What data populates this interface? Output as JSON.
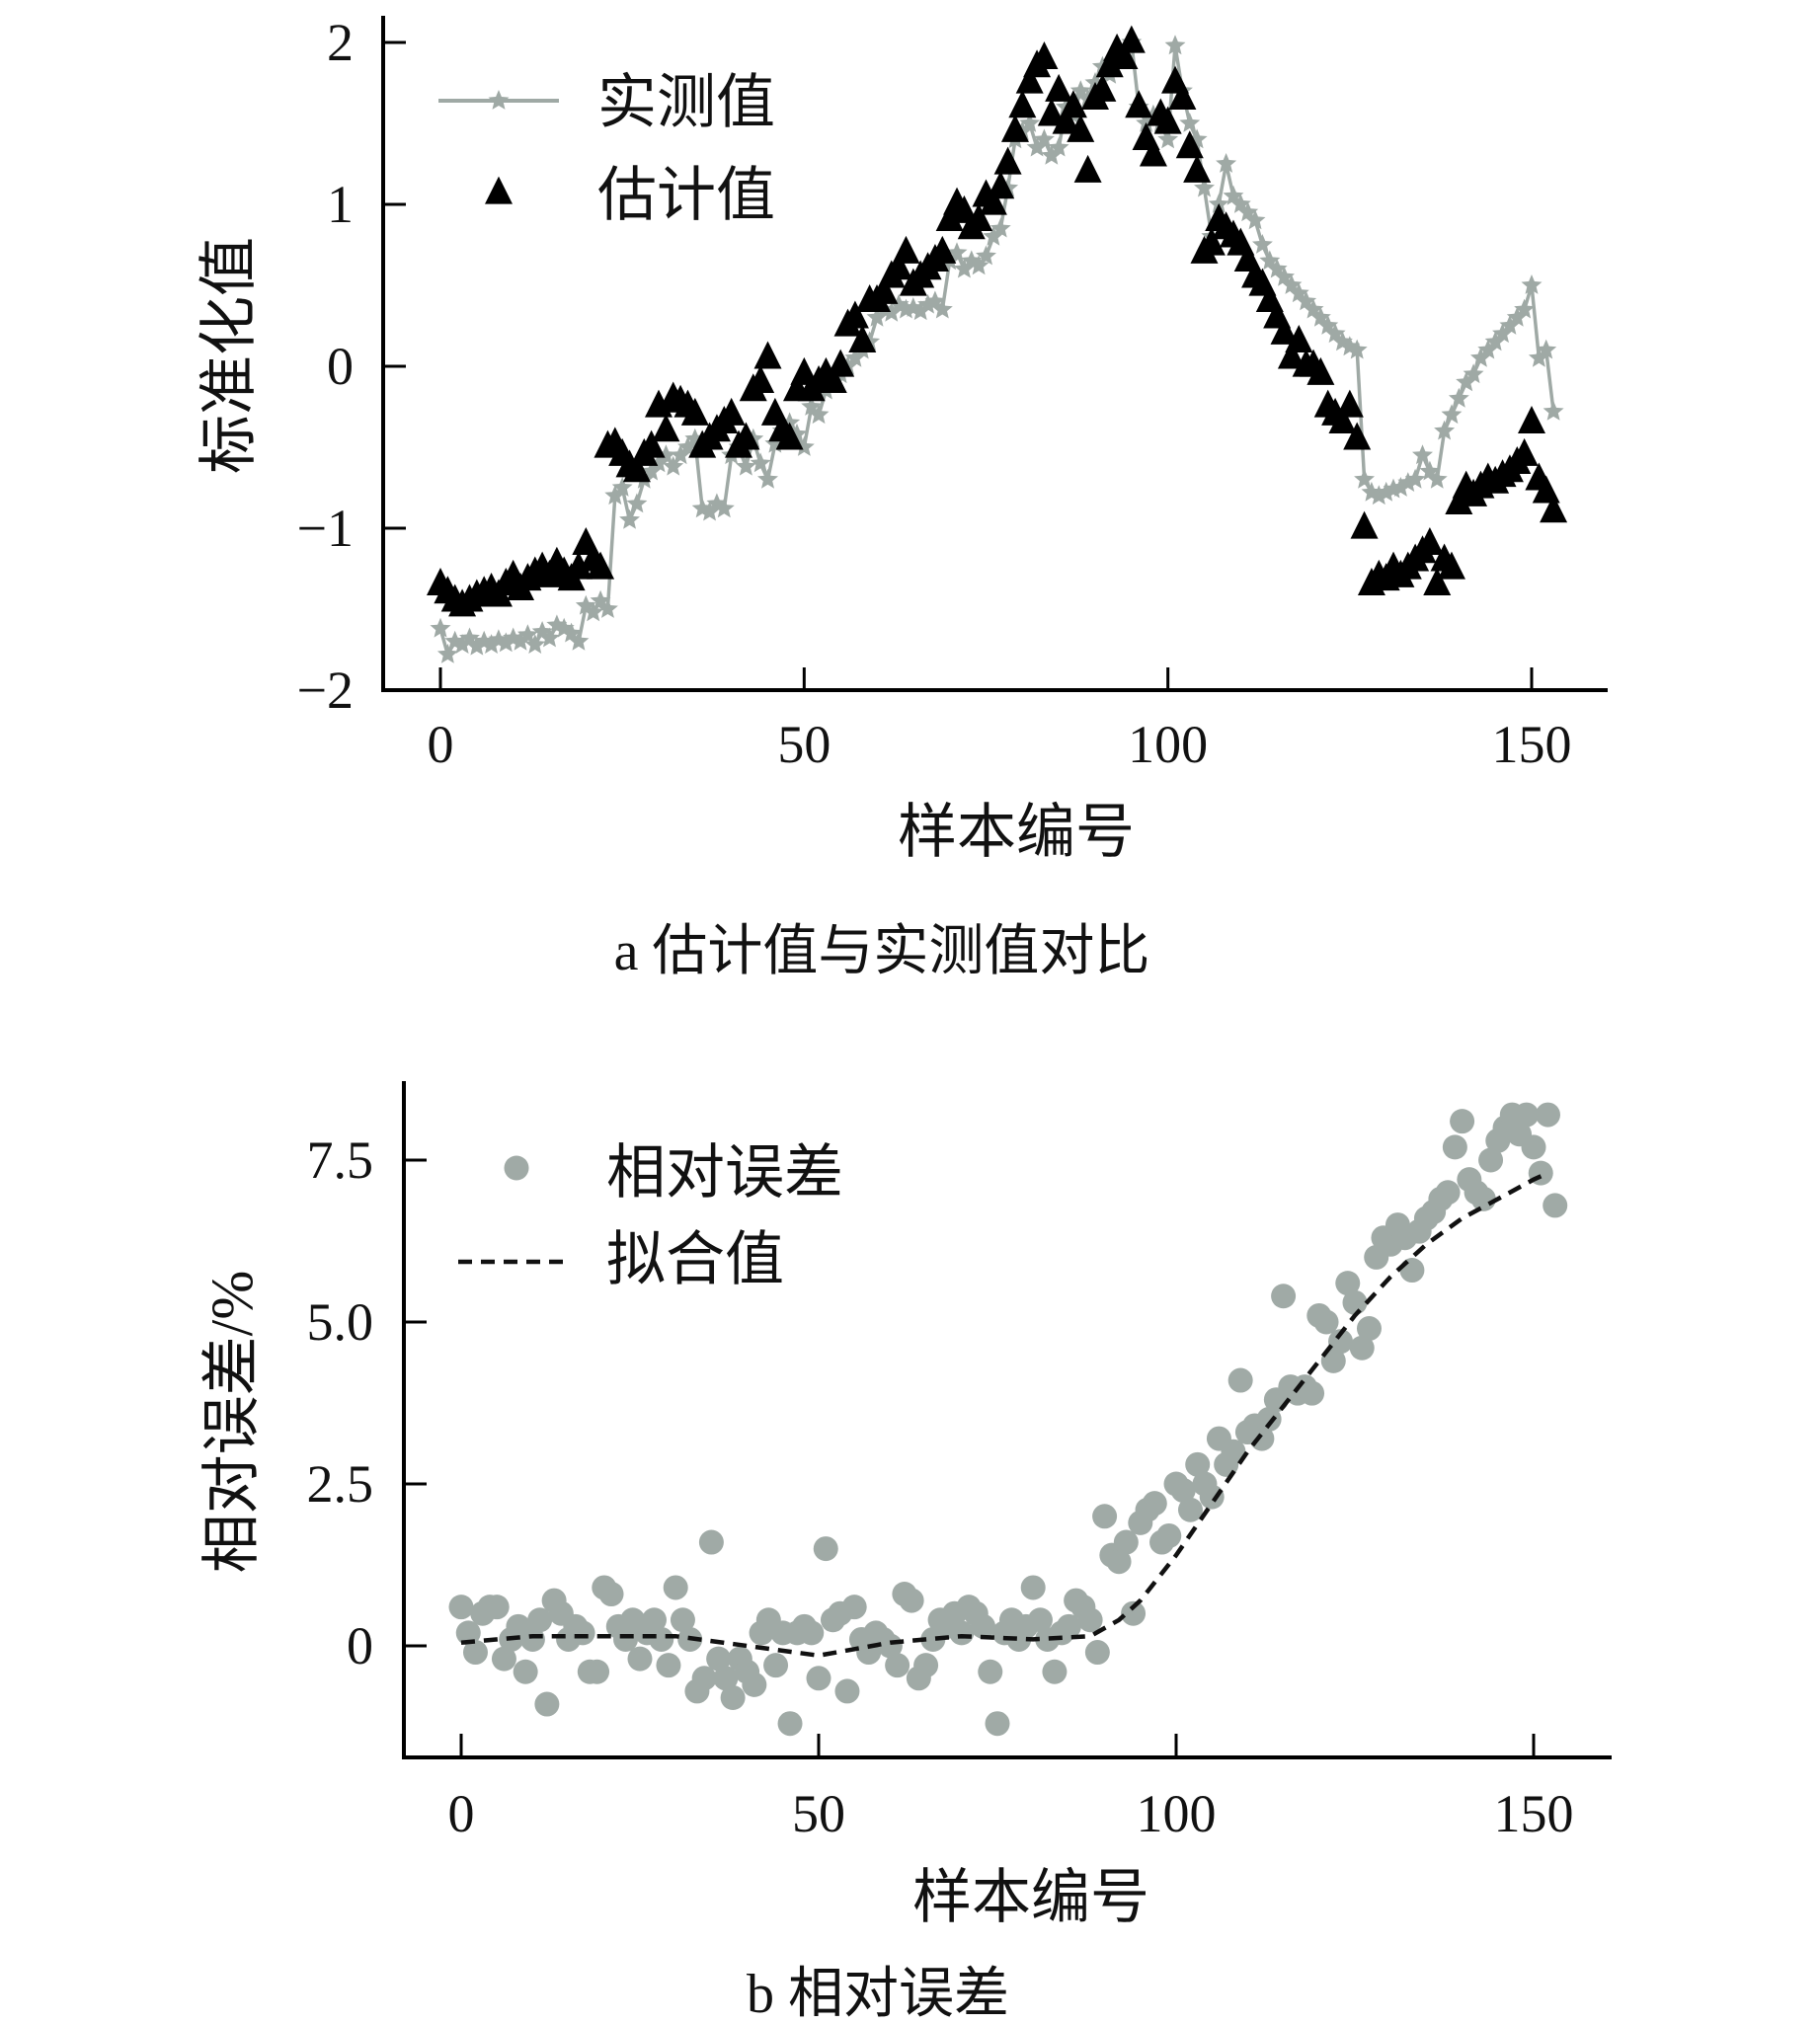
{
  "colors": {
    "measured": "#9fa9a5",
    "estimated": "#000000",
    "error": "#a0aaa6",
    "fit": "#111111",
    "axis": "#000000"
  },
  "chart_data": [
    {
      "type": "line",
      "caption": "a  估计值与实测值对比",
      "xlabel": "样本编号",
      "ylabel": "标准化值",
      "xlim": [
        -7,
        160
      ],
      "ylim": [
        -2,
        2.15
      ],
      "xticks": [
        0,
        50,
        100,
        150
      ],
      "xtick_labels": [
        "0",
        "50",
        "100",
        "150"
      ],
      "yticks": [
        2,
        1,
        0,
        -1,
        -2
      ],
      "ytick_labels": [
        "2",
        "1",
        "0",
        "−1",
        "−2"
      ],
      "legend": {
        "placement": "top-left",
        "entries": [
          "实测值",
          "估计值"
        ]
      },
      "series": [
        {
          "name": "实测值",
          "style": "gray line with star markers",
          "values": [
            -1.62,
            -1.78,
            -1.7,
            -1.72,
            -1.68,
            -1.73,
            -1.7,
            -1.72,
            -1.69,
            -1.71,
            -1.68,
            -1.7,
            -1.66,
            -1.72,
            -1.64,
            -1.68,
            -1.6,
            -1.62,
            -1.65,
            -1.7,
            -1.48,
            -1.52,
            -1.45,
            -1.5,
            -0.8,
            -0.75,
            -0.95,
            -0.85,
            -0.7,
            -0.65,
            -0.6,
            -0.55,
            -0.62,
            -0.55,
            -0.5,
            -0.45,
            -0.88,
            -0.9,
            -0.85,
            -0.88,
            -0.55,
            -0.5,
            -0.62,
            -0.45,
            -0.6,
            -0.7,
            -0.48,
            -0.4,
            -0.35,
            -0.42,
            -0.5,
            -0.25,
            -0.3,
            -0.15,
            -0.1,
            -0.05,
            0.0,
            0.05,
            0.1,
            0.15,
            0.3,
            0.35,
            0.33,
            0.38,
            0.35,
            0.36,
            0.34,
            0.38,
            0.4,
            0.35,
            0.65,
            0.7,
            0.6,
            0.65,
            0.62,
            0.68,
            0.8,
            0.85,
            1.1,
            1.4,
            1.45,
            1.5,
            1.35,
            1.4,
            1.3,
            1.35,
            1.6,
            1.55,
            1.7,
            1.65,
            1.75,
            1.85,
            1.8,
            1.9,
            1.95,
            2.0,
            1.6,
            1.5,
            1.55,
            1.5,
            1.4,
            1.98,
            1.7,
            1.5,
            1.4,
            1.1,
            0.8,
            1.0,
            1.25,
            1.05,
            1.0,
            0.95,
            0.9,
            0.75,
            0.65,
            0.6,
            0.55,
            0.5,
            0.45,
            0.4,
            0.35,
            0.3,
            0.25,
            0.2,
            0.15,
            0.12,
            0.1,
            -0.7,
            -0.78,
            -0.8,
            -0.78,
            -0.76,
            -0.75,
            -0.72,
            -0.7,
            -0.55,
            -0.65,
            -0.7,
            -0.4,
            -0.3,
            -0.2,
            -0.1,
            -0.05,
            0.05,
            0.1,
            0.15,
            0.2,
            0.25,
            0.3,
            0.35,
            0.5,
            0.05,
            0.1,
            -0.28
          ]
        },
        {
          "name": "估计值",
          "style": "black triangle markers",
          "values": [
            -1.35,
            -1.4,
            -1.45,
            -1.48,
            -1.45,
            -1.42,
            -1.4,
            -1.38,
            -1.42,
            -1.35,
            -1.3,
            -1.38,
            -1.32,
            -1.28,
            -1.25,
            -1.3,
            -1.22,
            -1.28,
            -1.32,
            -1.25,
            -1.1,
            -1.2,
            -1.25,
            -0.5,
            -0.48,
            -0.55,
            -0.62,
            -0.65,
            -0.55,
            -0.5,
            -0.25,
            -0.4,
            -0.2,
            -0.22,
            -0.25,
            -0.3,
            -0.5,
            -0.45,
            -0.4,
            -0.35,
            -0.3,
            -0.5,
            -0.45,
            -0.15,
            -0.1,
            0.05,
            -0.3,
            -0.4,
            -0.45,
            -0.15,
            -0.05,
            -0.15,
            -0.1,
            -0.05,
            -0.1,
            0.0,
            0.25,
            0.3,
            0.15,
            0.4,
            0.4,
            0.45,
            0.55,
            0.6,
            0.7,
            0.5,
            0.55,
            0.6,
            0.65,
            0.7,
            0.9,
            1.0,
            0.95,
            0.85,
            0.9,
            1.05,
            1.0,
            1.1,
            1.25,
            1.45,
            1.6,
            1.75,
            1.85,
            1.9,
            1.55,
            1.7,
            1.5,
            1.6,
            1.45,
            1.2,
            1.65,
            1.7,
            1.85,
            1.95,
            1.9,
            2.0,
            1.6,
            1.4,
            1.3,
            1.55,
            1.5,
            1.75,
            1.65,
            1.35,
            1.2,
            0.7,
            0.75,
            0.9,
            0.85,
            0.8,
            0.75,
            0.65,
            0.55,
            0.5,
            0.4,
            0.3,
            0.2,
            0.05,
            0.15,
            0.0,
            0.0,
            -0.05,
            -0.25,
            -0.3,
            -0.35,
            -0.25,
            -0.45,
            -1.0,
            -1.35,
            -1.3,
            -1.32,
            -1.25,
            -1.3,
            -1.25,
            -1.2,
            -1.15,
            -1.1,
            -1.35,
            -1.2,
            -1.25,
            -0.85,
            -0.75,
            -0.8,
            -0.75,
            -0.7,
            -0.72,
            -0.68,
            -0.65,
            -0.6,
            -0.55,
            -0.35,
            -0.7,
            -0.78,
            -0.9
          ]
        }
      ]
    },
    {
      "type": "scatter",
      "caption": "b  相对误差",
      "xlabel": "样本编号",
      "ylabel": "相对误差/%",
      "xlim": [
        -8,
        160
      ],
      "ylim": [
        -1.7,
        8.7
      ],
      "xticks": [
        0,
        50,
        100,
        150
      ],
      "xtick_labels": [
        "0",
        "50",
        "100",
        "150"
      ],
      "yticks": [
        7.5,
        5.0,
        2.5,
        0
      ],
      "ytick_labels": [
        "7.5",
        "5.0",
        "2.5",
        "0"
      ],
      "legend": {
        "placement": "top-left",
        "entries": [
          "相对误差",
          "拟合值"
        ]
      },
      "series": [
        {
          "name": "相对误差",
          "style": "gray circle markers",
          "values": [
            0.6,
            0.2,
            -0.1,
            0.5,
            0.6,
            0.6,
            -0.2,
            0.1,
            0.3,
            -0.4,
            0.1,
            0.4,
            -0.9,
            0.7,
            0.5,
            0.1,
            0.3,
            0.2,
            -0.4,
            -0.4,
            0.9,
            0.8,
            0.3,
            0.1,
            0.4,
            -0.2,
            0.2,
            0.4,
            0.1,
            -0.3,
            0.9,
            0.4,
            0.1,
            -0.7,
            -0.5,
            1.6,
            -0.2,
            -0.5,
            -0.8,
            -0.2,
            -0.4,
            -0.6,
            0.2,
            0.4,
            -0.3,
            0.2,
            -1.2,
            0.2,
            0.3,
            0.2,
            -0.5,
            1.5,
            0.4,
            0.5,
            -0.7,
            0.6,
            0.1,
            -0.1,
            0.2,
            0.1,
            0.0,
            -0.3,
            0.8,
            0.7,
            -0.5,
            -0.3,
            0.1,
            0.4,
            0.3,
            0.5,
            0.2,
            0.6,
            0.5,
            0.3,
            -0.4,
            -1.2,
            0.2,
            0.4,
            0.1,
            0.3,
            0.9,
            0.4,
            0.1,
            -0.4,
            0.2,
            0.3,
            0.7,
            0.6,
            0.4,
            -0.1,
            2.0,
            1.4,
            1.3,
            1.6,
            0.5,
            1.9,
            2.1,
            2.2,
            1.6,
            1.7,
            2.5,
            2.4,
            2.1,
            2.8,
            2.5,
            2.3,
            3.2,
            2.8,
            3.0,
            4.1,
            3.3,
            3.4,
            3.2,
            3.5,
            3.8,
            5.4,
            4.0,
            3.9,
            4.0,
            3.9,
            5.1,
            5.0,
            4.4,
            4.7,
            5.6,
            5.3,
            4.6,
            4.9,
            6.0,
            6.3,
            6.2,
            6.5,
            6.3,
            5.8,
            6.4,
            6.6,
            6.7,
            6.9,
            7.0,
            7.7,
            8.1,
            7.2,
            7.0,
            6.9,
            7.5,
            7.8,
            8.0,
            8.2,
            7.9,
            8.2,
            7.7,
            7.3,
            8.2,
            6.8
          ]
        },
        {
          "name": "拟合值",
          "style": "black dashed line",
          "x": [
            0,
            10,
            20,
            30,
            40,
            50,
            55,
            60,
            70,
            80,
            88,
            92,
            95,
            100,
            105,
            110,
            115,
            120,
            125,
            130,
            135,
            140,
            145,
            150,
            152
          ],
          "values": [
            0.05,
            0.15,
            0.15,
            0.15,
            0.0,
            -0.15,
            -0.05,
            0.05,
            0.15,
            0.1,
            0.15,
            0.4,
            0.7,
            1.4,
            2.2,
            3.0,
            3.7,
            4.4,
            5.1,
            5.7,
            6.2,
            6.6,
            6.9,
            7.2,
            7.3
          ]
        }
      ]
    }
  ]
}
